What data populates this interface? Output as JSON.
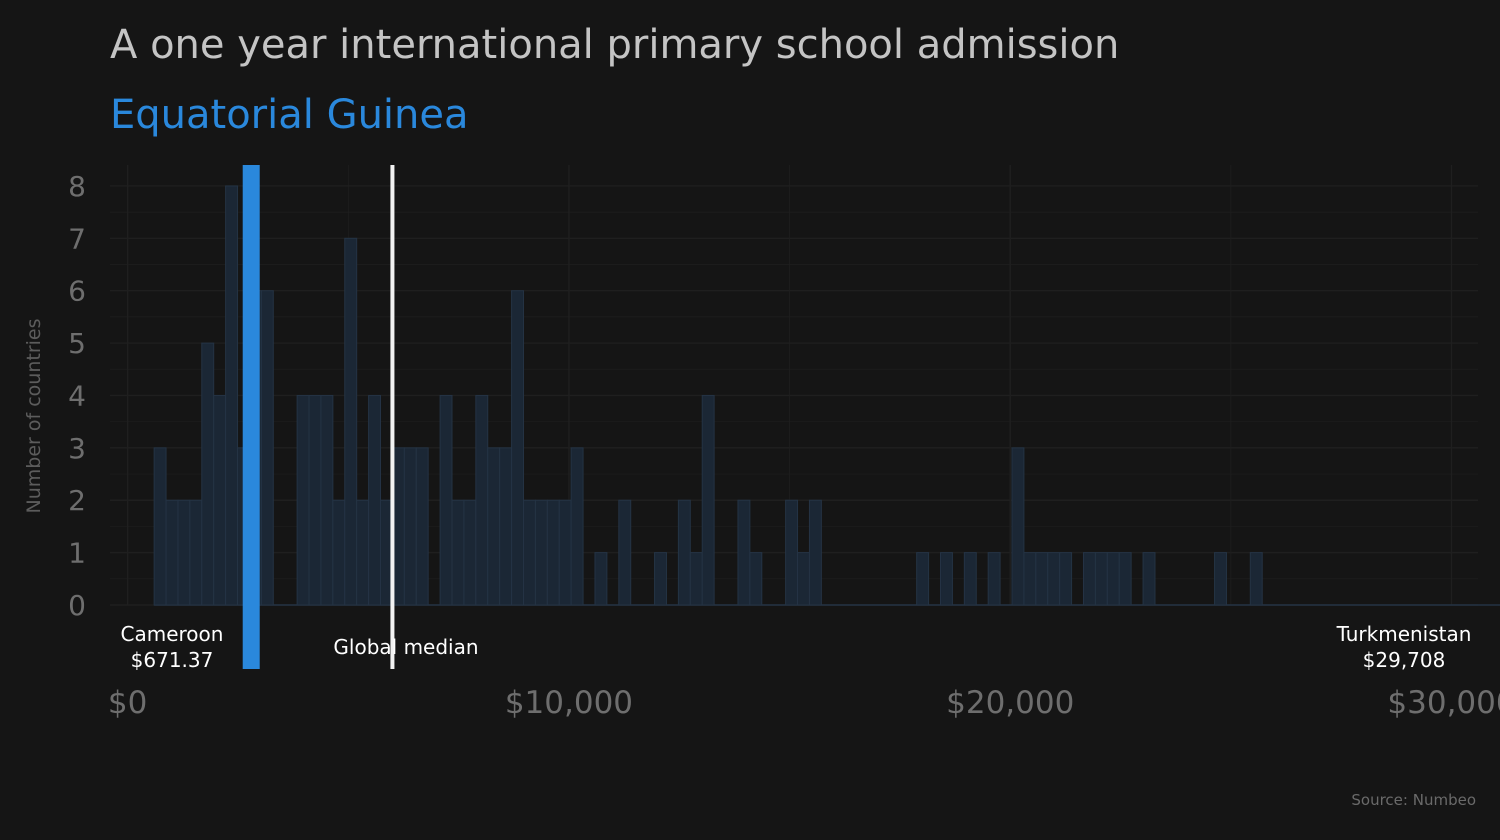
{
  "chart_data": {
    "type": "bar",
    "title": "A one year international primary school admission",
    "subtitle": "Equatorial Guinea",
    "xlabel": "",
    "ylabel": "Number of countries",
    "source": "Source: Numbeo",
    "xlim": [
      -400,
      30600
    ],
    "ylim": [
      0,
      8.4
    ],
    "x_ticks": [
      {
        "value": 0,
        "label": "$0"
      },
      {
        "value": 10000,
        "label": "$10,000"
      },
      {
        "value": 20000,
        "label": "$20,000"
      },
      {
        "value": 30000,
        "label": "$30,000"
      }
    ],
    "y_ticks": [
      0,
      1,
      2,
      3,
      4,
      5,
      6,
      7,
      8
    ],
    "grid": true,
    "bin_width": 270,
    "bin_start": 600,
    "counts": [
      3,
      2,
      2,
      2,
      5,
      4,
      8,
      3,
      6,
      6,
      0,
      0,
      4,
      4,
      4,
      2,
      7,
      2,
      4,
      2,
      3,
      3,
      3,
      0,
      4,
      2,
      2,
      4,
      3,
      3,
      6,
      2,
      2,
      2,
      2,
      3,
      0,
      1,
      0,
      2,
      0,
      0,
      1,
      0,
      2,
      1,
      4,
      0,
      0,
      2,
      1,
      0,
      0,
      2,
      1,
      2,
      0,
      0,
      0,
      0,
      0,
      0,
      0,
      0,
      1,
      0,
      1,
      0,
      1,
      0,
      1,
      0,
      3,
      1,
      1,
      1,
      1,
      0,
      1,
      1,
      1,
      1,
      0,
      1,
      0,
      0,
      0,
      0,
      0,
      1,
      0,
      0,
      1,
      0,
      0,
      0,
      0,
      0,
      0,
      0,
      0,
      0,
      0,
      0,
      0,
      0,
      0,
      0,
      0,
      0,
      0,
      0,
      0,
      0,
      0,
      1,
      0,
      0,
      1,
      0,
      0,
      0,
      0,
      0,
      0,
      0,
      0,
      0,
      0,
      0,
      0,
      0,
      0,
      0,
      0,
      0,
      0,
      0,
      0,
      0,
      0,
      0,
      0,
      0,
      1
    ],
    "highlight": {
      "name": "Equatorial Guinea",
      "value": 2800,
      "color": "#2a88dc"
    },
    "median": {
      "label": "Global median",
      "value": 6000,
      "color": "#f2f2f2"
    },
    "annotations": [
      {
        "name": "Cameroon",
        "line1": "Cameroon",
        "line2": "$671.37",
        "value": 671.37,
        "anchor": "middle"
      },
      {
        "name": "Turkmenistan",
        "line1": "Turkmenistan",
        "line2": "$29,708",
        "value": 29708,
        "anchor": "middle"
      }
    ],
    "colors": {
      "background": "#151515",
      "bar_fill": "#1b2735",
      "bar_stroke": "#243344",
      "grid": "#1f1f1f"
    }
  }
}
